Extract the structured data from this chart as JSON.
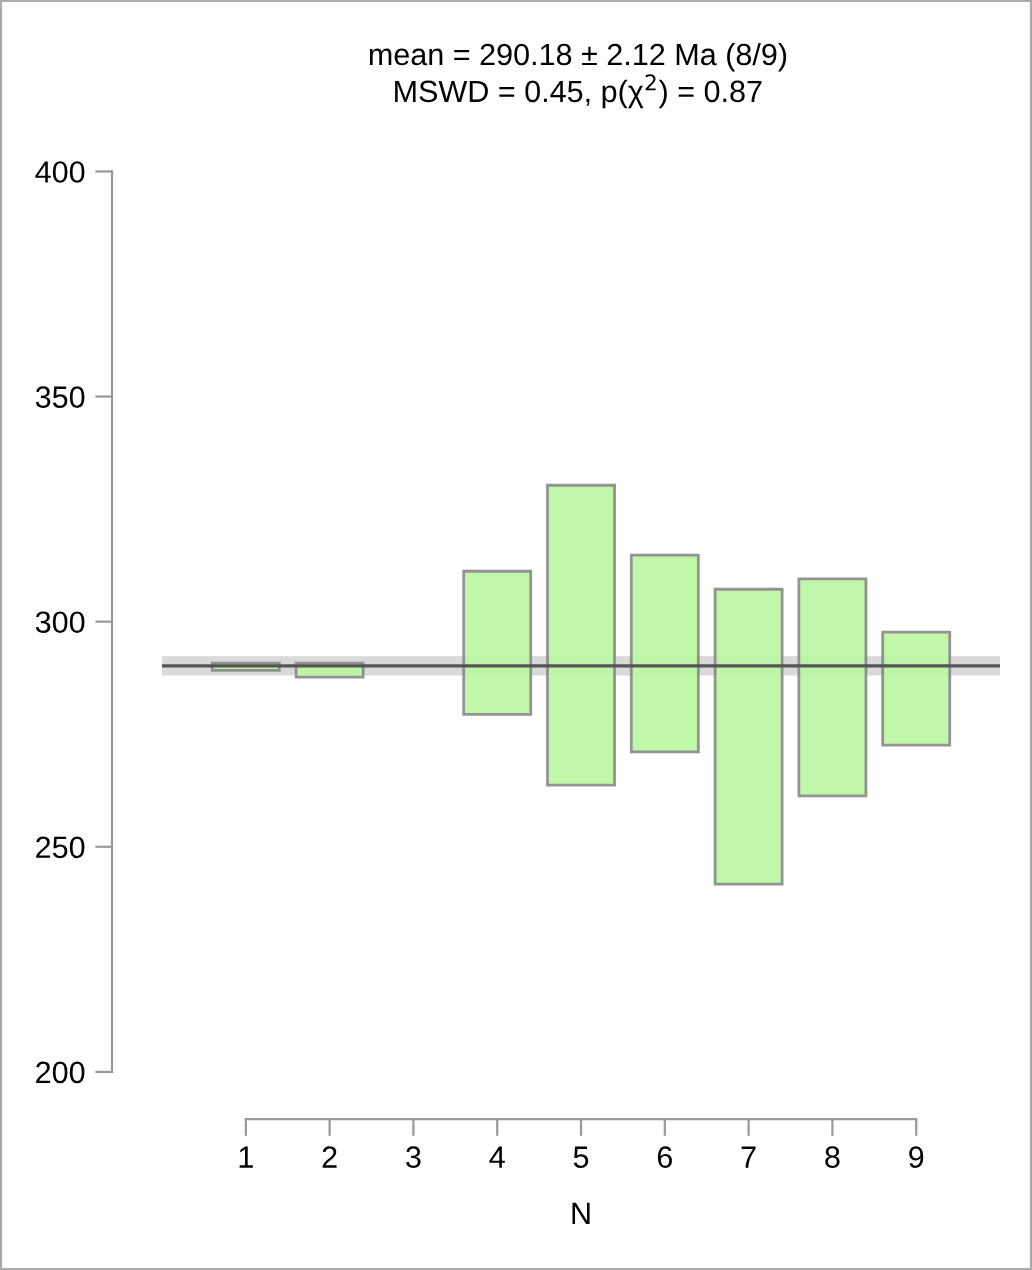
{
  "chart_data": {
    "type": "bar",
    "title": "mean = 290.18 ± 2.12 Ma (8/9)",
    "subtitle": "MSWD = 0.45, p(χ$^{2}$) = 0.87",
    "xlabel": "N",
    "categories": [
      "1",
      "2",
      "3",
      "4",
      "5",
      "6",
      "7",
      "8",
      "9"
    ],
    "base": [
      289.2,
      287.7,
      null,
      279.4,
      263.7,
      271.1,
      241.7,
      261.3,
      272.6
    ],
    "values": [
      1.6,
      3.1,
      null,
      31.8,
      66.6,
      43.7,
      65.5,
      48.2,
      25.1
    ],
    "color": "#bbf7a0",
    "ylim": [
      200,
      400
    ],
    "yticks": [
      200,
      250,
      300,
      350,
      400
    ],
    "ref_lines": [
      {
        "axis": "y",
        "value": 290.18,
        "color": "#555555",
        "line_style": "solid"
      }
    ],
    "bands": [
      {
        "axis": "y",
        "from": 288.06,
        "to": 292.3,
        "color": "#d9d9d9"
      }
    ],
    "grid": false,
    "legend": false
  }
}
